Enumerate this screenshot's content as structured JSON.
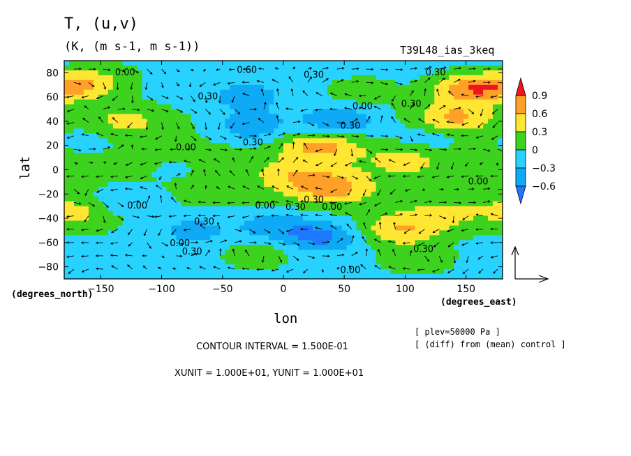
{
  "title": "T, (u,v)",
  "units": "(K, (m s-1, m s-1))",
  "run_name": "T39L48_ias_3keq",
  "x_unit_label": "(degrees_east)",
  "y_unit_label": "(degrees_north)",
  "footer": {
    "contour_interval": "CONTOUR INTERVAL = 1.500E-01",
    "units_line": "XUNIT = 1.000E+01, YUNIT = 1.000E+01",
    "plev": "[ plev=50000 Pa ]",
    "diff_note": "[ (diff) from (mean) control ]"
  },
  "colors": {
    "lt_-0.6": "#1e78ff",
    "-0.6_-0.3": "#0faaf5",
    "-0.3_0": "#28d2ff",
    "0_0.3": "#3cd21e",
    "0.3_0.6": "#ffe632",
    "0.6_0.9": "#ffa028",
    "gt_0.9": "#f0141e"
  },
  "chart_data": {
    "type": "heatmap",
    "subtype": "contour map with wind vectors",
    "xlabel": "lon",
    "ylabel": "lat",
    "xlim": [
      -180,
      180
    ],
    "ylim": [
      -90,
      90
    ],
    "xticks": [
      -150,
      -100,
      -50,
      0,
      50,
      100,
      150
    ],
    "yticks": [
      -80,
      -60,
      -40,
      -20,
      0,
      20,
      40,
      60,
      80
    ],
    "colorbar_ticks": [
      0.9,
      0.6,
      0.3,
      0,
      -0.3,
      -0.6
    ],
    "contour_labels": [
      {
        "text": "0.00",
        "lon": -130,
        "lat": 78
      },
      {
        "text": "0.60",
        "lon": -30,
        "lat": 80
      },
      {
        "text": "0.30",
        "lon": 25,
        "lat": 76
      },
      {
        "text": "0.30",
        "lon": 125,
        "lat": 78
      },
      {
        "text": "0.30",
        "lon": -62,
        "lat": 58
      },
      {
        "text": "0.00",
        "lon": 65,
        "lat": 50
      },
      {
        "text": "0.30",
        "lon": 105,
        "lat": 52
      },
      {
        "text": "0.30",
        "lon": 55,
        "lat": 34
      },
      {
        "text": "0.30",
        "lon": -25,
        "lat": 20
      },
      {
        "text": "0.00",
        "lon": -80,
        "lat": 16
      },
      {
        "text": "0.00",
        "lon": 160,
        "lat": -12
      },
      {
        "text": "0.30",
        "lon": 25,
        "lat": -27
      },
      {
        "text": "0.00",
        "lon": -120,
        "lat": -32
      },
      {
        "text": "0.00",
        "lon": -15,
        "lat": -32
      },
      {
        "text": "0.30",
        "lon": 10,
        "lat": -33
      },
      {
        "text": "0.00",
        "lon": 40,
        "lat": -33
      },
      {
        "text": "0.30",
        "lon": -65,
        "lat": -45
      },
      {
        "text": "0.00",
        "lon": -85,
        "lat": -63
      },
      {
        "text": "0.30",
        "lon": -75,
        "lat": -70
      },
      {
        "text": "0.30",
        "lon": 115,
        "lat": -68
      },
      {
        "text": "0.00",
        "lon": 55,
        "lat": -85
      }
    ],
    "features": [
      {
        "lon": 155,
        "lat": 67,
        "value": 0.9
      },
      {
        "lon": 140,
        "lat": 42,
        "value": 0.7
      },
      {
        "lon": 30,
        "lat": 20,
        "value": 0.65
      },
      {
        "lon": 40,
        "lat": -15,
        "value": 0.65
      },
      {
        "lon": 95,
        "lat": -50,
        "value": 0.6
      },
      {
        "lon": 65,
        "lat": 65,
        "value": 0.25
      },
      {
        "lon": -165,
        "lat": 70,
        "value": 0.6
      },
      {
        "lon": -130,
        "lat": 40,
        "value": 0.4
      },
      {
        "lon": 10,
        "lat": -5,
        "value": 0.4
      },
      {
        "lon": -170,
        "lat": -35,
        "value": 0.4
      },
      {
        "lon": 130,
        "lat": -38,
        "value": 0.35
      },
      {
        "lon": -20,
        "lat": -70,
        "value": 0.3
      },
      {
        "lon": 110,
        "lat": -75,
        "value": 0.3
      },
      {
        "lon": 100,
        "lat": 8,
        "value": 0.3
      },
      {
        "lon": -140,
        "lat": 80,
        "value": 0.15
      },
      {
        "lon": -25,
        "lat": 35,
        "value": -0.55
      },
      {
        "lon": 45,
        "lat": 40,
        "value": -0.65
      },
      {
        "lon": -30,
        "lat": 60,
        "value": -0.4
      },
      {
        "lon": 30,
        "lat": -55,
        "value": -0.65
      },
      {
        "lon": -75,
        "lat": -50,
        "value": -0.4
      },
      {
        "lon": -130,
        "lat": -25,
        "value": -0.4
      },
      {
        "lon": -10,
        "lat": -45,
        "value": -0.45
      },
      {
        "lon": 120,
        "lat": 28,
        "value": -0.3
      },
      {
        "lon": -160,
        "lat": 25,
        "value": -0.2
      },
      {
        "lon": -90,
        "lat": 0,
        "value": -0.15
      },
      {
        "lon": -150,
        "lat": -85,
        "value": -0.1
      }
    ],
    "reference_vector": {
      "u": 10,
      "v": 10
    }
  }
}
